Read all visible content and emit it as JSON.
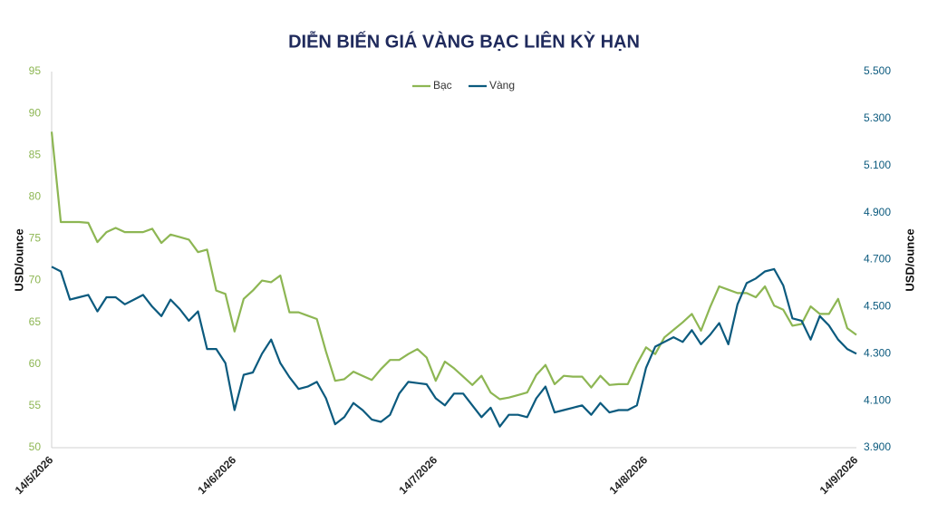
{
  "chart_data": {
    "type": "line",
    "title": "DIỄN BIẾN GIÁ VÀNG BẠC LIÊN KỲ HẠN",
    "y_label": "USD/ounce",
    "y2_label": "USD/ounce",
    "legend": "top",
    "categories": [
      "14/5/2026",
      null,
      null,
      null,
      null,
      null,
      null,
      null,
      null,
      null,
      null,
      null,
      null,
      null,
      null,
      null,
      null,
      null,
      null,
      null,
      "14/6/2026",
      null,
      null,
      null,
      null,
      null,
      null,
      null,
      null,
      null,
      null,
      null,
      null,
      null,
      null,
      null,
      null,
      null,
      null,
      null,
      null,
      null,
      "14/7/2026",
      null,
      null,
      null,
      null,
      null,
      null,
      null,
      null,
      null,
      null,
      null,
      null,
      null,
      null,
      null,
      null,
      null,
      null,
      null,
      null,
      null,
      null,
      "14/8/2026",
      null,
      null,
      null,
      null,
      null,
      null,
      null,
      null,
      null,
      null,
      null,
      null,
      null,
      null,
      null,
      null,
      null,
      null,
      null,
      null,
      null,
      null,
      "14/9/2026"
    ],
    "series": [
      {
        "name": "Bạc",
        "color": "#8db653",
        "values": [
          87.8,
          77.0,
          77.0,
          77.0,
          76.9,
          74.6,
          75.8,
          76.3,
          75.8,
          75.8,
          75.8,
          76.2,
          74.5,
          75.5,
          75.2,
          74.9,
          73.4,
          73.7,
          68.8,
          68.4,
          63.9,
          67.8,
          68.8,
          70.0,
          69.8,
          70.6,
          66.2,
          66.2,
          65.8,
          65.4,
          61.5,
          58.0,
          58.2,
          59.1,
          58.6,
          58.1,
          59.4,
          60.5,
          60.5,
          61.2,
          61.8,
          60.8,
          58.0,
          60.3,
          59.5,
          58.5,
          57.5,
          58.6,
          56.6,
          55.8,
          56.0,
          56.3,
          56.6,
          58.7,
          59.9,
          57.6,
          58.6,
          58.5,
          58.5,
          57.2,
          58.6,
          57.5,
          57.6,
          57.6,
          60.0,
          62.0,
          61.2,
          63.2,
          64.1,
          65.0,
          66.0,
          64.0,
          66.8,
          69.3,
          68.9,
          68.5,
          68.5,
          68.0,
          69.3,
          67.0,
          66.5,
          64.6,
          64.8,
          66.9,
          66.0,
          66.0,
          67.8,
          64.3,
          63.5
        ]
      },
      {
        "name": "Vàng",
        "color": "#0b5a7e",
        "axis": "y2",
        "values": [
          4670,
          4650,
          4530,
          4540,
          4550,
          4480,
          4540,
          4540,
          4510,
          4530,
          4550,
          4500,
          4460,
          4530,
          4490,
          4440,
          4480,
          4320,
          4320,
          4260,
          4060,
          4210,
          4220,
          4300,
          4360,
          4260,
          4200,
          4150,
          4160,
          4180,
          4110,
          4000,
          4030,
          4090,
          4060,
          4020,
          4010,
          4040,
          4130,
          4180,
          4175,
          4170,
          4110,
          4080,
          4130,
          4130,
          4080,
          4030,
          4070,
          3990,
          4040,
          4040,
          4030,
          4110,
          4160,
          4050,
          4060,
          4070,
          4080,
          4040,
          4090,
          4050,
          4060,
          4060,
          4080,
          4240,
          4330,
          4350,
          4370,
          4350,
          4400,
          4340,
          4380,
          4430,
          4340,
          4510,
          4600,
          4620,
          4650,
          4660,
          4590,
          4450,
          4440,
          4360,
          4460,
          4420,
          4360,
          4320,
          4300
        ]
      }
    ],
    "ylim": [
      50,
      95
    ],
    "yticks": [
      50,
      55,
      60,
      65,
      70,
      75,
      80,
      85,
      90,
      95
    ],
    "y2lim": [
      3900,
      5500
    ],
    "y2ticks": [
      {
        "value": 3900,
        "label": "3.900"
      },
      {
        "value": 4100,
        "label": "4.100"
      },
      {
        "value": 4300,
        "label": "4.300"
      },
      {
        "value": 4500,
        "label": "4.500"
      },
      {
        "value": 4700,
        "label": "4.700"
      },
      {
        "value": 4900,
        "label": "4.900"
      },
      {
        "value": 5100,
        "label": "5.100"
      },
      {
        "value": 5300,
        "label": "5.300"
      },
      {
        "value": 5500,
        "label": "5.500"
      }
    ],
    "grid": false
  }
}
